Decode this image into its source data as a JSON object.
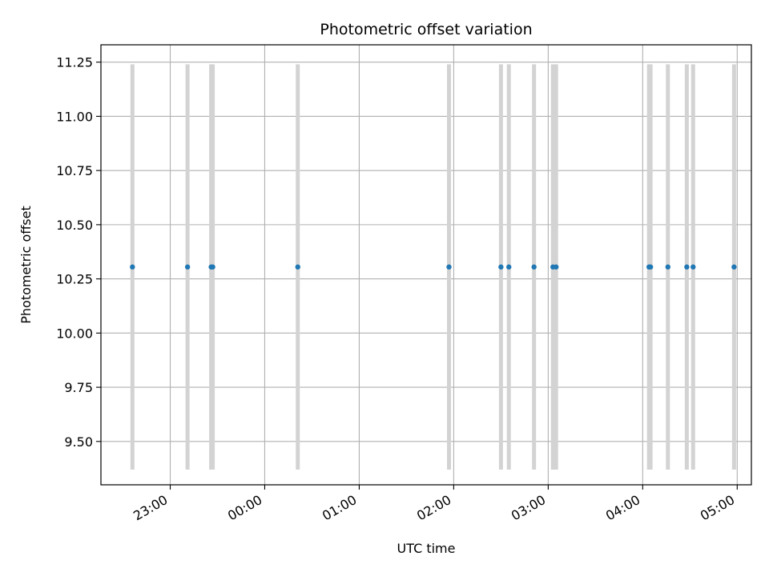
{
  "chart_data": {
    "type": "scatter",
    "title": "Photometric offset variation",
    "xlabel": "UTC time",
    "ylabel": "Photometric offset",
    "grid": true,
    "xlim": [
      "22:16",
      "05:09"
    ],
    "ylim": [
      9.3,
      11.33
    ],
    "x_ticks": [
      "23:00",
      "00:00",
      "01:00",
      "02:00",
      "03:00",
      "04:00",
      "05:00"
    ],
    "y_ticks": [
      9.5,
      9.75,
      10.0,
      10.25,
      10.5,
      10.75,
      11.0,
      11.25
    ],
    "y_tick_labels": [
      "9.50",
      "9.75",
      "10.00",
      "10.25",
      "10.50",
      "10.75",
      "11.00",
      "11.25"
    ],
    "error_range": [
      9.37,
      11.24
    ],
    "points": [
      {
        "x": "22:36",
        "y": 10.305
      },
      {
        "x": "23:11",
        "y": 10.305
      },
      {
        "x": "23:26",
        "y": 10.305
      },
      {
        "x": "23:27",
        "y": 10.305
      },
      {
        "x": "00:21",
        "y": 10.305
      },
      {
        "x": "01:57",
        "y": 10.305
      },
      {
        "x": "02:30",
        "y": 10.305
      },
      {
        "x": "02:35",
        "y": 10.305
      },
      {
        "x": "02:51",
        "y": 10.305
      },
      {
        "x": "03:03",
        "y": 10.305
      },
      {
        "x": "03:05",
        "y": 10.305
      },
      {
        "x": "04:04",
        "y": 10.305
      },
      {
        "x": "04:05",
        "y": 10.305
      },
      {
        "x": "04:16",
        "y": 10.305
      },
      {
        "x": "04:28",
        "y": 10.305
      },
      {
        "x": "04:32",
        "y": 10.305
      },
      {
        "x": "04:58",
        "y": 10.305
      }
    ],
    "colors": {
      "points": "#1f77b4",
      "error_bars": "#d3d3d3",
      "grid": "#b0b0b0",
      "axes": "#000000"
    }
  }
}
